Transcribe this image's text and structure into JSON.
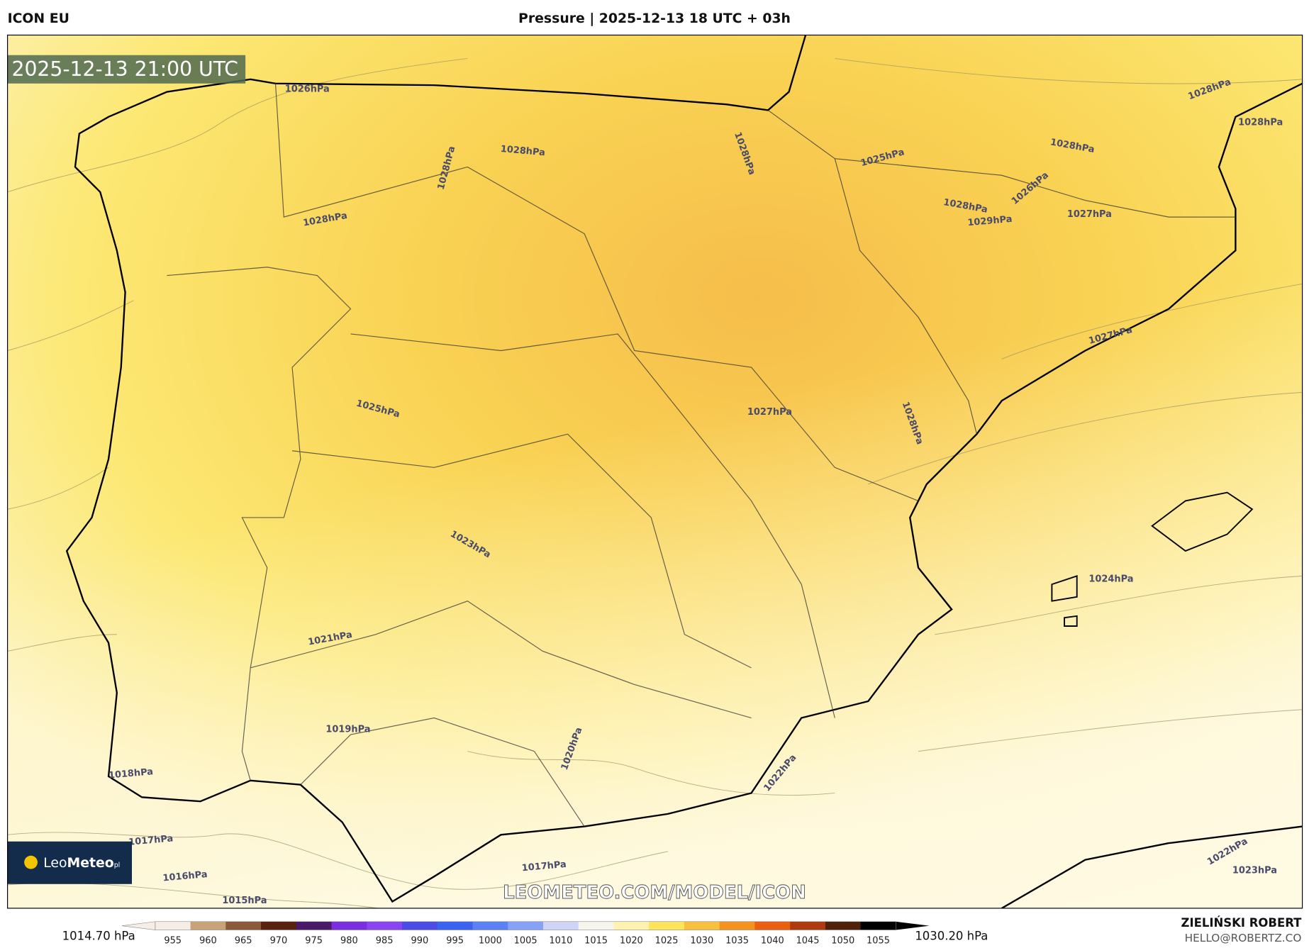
{
  "header": {
    "model": "ICON EU",
    "title": "Pressure | 2025-12-13 18 UTC + 03h"
  },
  "map": {
    "timestamp": "2025-12-13 21:00 UTC",
    "watermark": "LEOMETEO.COM/MODEL/ICON",
    "logo": {
      "name_light": "Leo",
      "name_bold": "Meteo",
      "suffix": "pl"
    },
    "contour_labels": [
      "1026hPa",
      "1028hPa",
      "1028hPa",
      "1028hPa",
      "1028hPa",
      "1025hPa",
      "1028hPa",
      "1029hPa",
      "1026hPa",
      "1027hPa",
      "1028hPa",
      "1028hPa",
      "1027hPa",
      "1027hPa",
      "1028hPa",
      "1025hPa",
      "1023hPa",
      "1024hPa",
      "1021hPa",
      "1019hPa",
      "1020hPa",
      "1022hPa",
      "1018hPa",
      "1017hPa",
      "1016hPa",
      "1015hPa",
      "1017hPa",
      "1022hPa",
      "1023hPa",
      "1028hPa"
    ]
  },
  "colorbar": {
    "min_label": "1014.70 hPa",
    "max_label": "1030.20 hPa",
    "ticks": [
      955,
      960,
      965,
      970,
      975,
      980,
      985,
      990,
      995,
      1000,
      1005,
      1010,
      1015,
      1020,
      1025,
      1030,
      1035,
      1040,
      1045,
      1050,
      1055
    ],
    "colors": [
      "#f4eee4",
      "#c9a27a",
      "#8a5a3a",
      "#5a2010",
      "#4a1a6a",
      "#7a2ee0",
      "#8a44f0",
      "#4b4be6",
      "#3b62f0",
      "#5a82f5",
      "#86a2f8",
      "#cdd4f8",
      "#f6f4ec",
      "#fdf2b0",
      "#fde45a",
      "#f9bf3e",
      "#f5921e",
      "#ec5e10",
      "#b03a10",
      "#502008",
      "#000000"
    ]
  },
  "footer": {
    "author": "ZIELIŃSKI ROBERT",
    "email": "HELLO@ROBERTZ.CO"
  }
}
